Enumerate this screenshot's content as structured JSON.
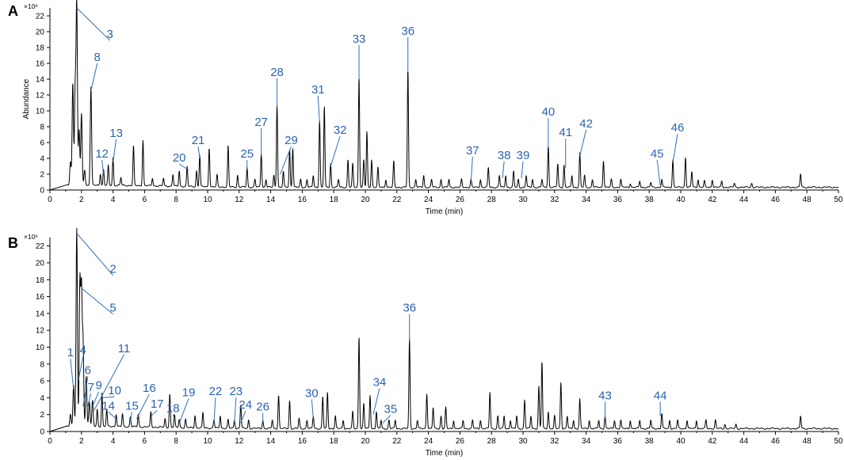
{
  "colors": {
    "trace": "#000000",
    "annotation": "#2a64b0",
    "background": "#ffffff"
  },
  "chart_data": [
    {
      "type": "line",
      "panel": "A",
      "multiplier": "×10⁶",
      "xlabel": "Time (min)",
      "ylabel": "Abundance",
      "xlim": [
        0,
        50
      ],
      "ylim": [
        0,
        23
      ],
      "xticks": [
        0,
        2,
        4,
        6,
        8,
        10,
        12,
        14,
        16,
        18,
        20,
        22,
        24,
        26,
        28,
        30,
        32,
        34,
        36,
        38,
        40,
        42,
        44,
        46,
        48,
        50
      ],
      "yticks": [
        0,
        2,
        4,
        6,
        8,
        10,
        12,
        14,
        16,
        18,
        20,
        22
      ],
      "peaks": [
        [
          1.3,
          3
        ],
        [
          1.45,
          13
        ],
        [
          1.6,
          12
        ],
        [
          1.7,
          23
        ],
        [
          1.85,
          7
        ],
        [
          2.0,
          9
        ],
        [
          2.2,
          2
        ],
        [
          2.6,
          12.5
        ],
        [
          3.2,
          1.5
        ],
        [
          3.4,
          2
        ],
        [
          3.7,
          2.5
        ],
        [
          4.0,
          3.5
        ],
        [
          4.5,
          1
        ],
        [
          5.3,
          5
        ],
        [
          5.9,
          5.8
        ],
        [
          6.5,
          1
        ],
        [
          7.2,
          1
        ],
        [
          7.8,
          1.5
        ],
        [
          8.2,
          2
        ],
        [
          8.7,
          2.5
        ],
        [
          9.3,
          2
        ],
        [
          9.5,
          4
        ],
        [
          10.1,
          5
        ],
        [
          10.6,
          1.5
        ],
        [
          11.3,
          5.2
        ],
        [
          11.9,
          1.5
        ],
        [
          12.5,
          2.5
        ],
        [
          13.0,
          1
        ],
        [
          13.4,
          4.3
        ],
        [
          13.7,
          1
        ],
        [
          14.2,
          1.5
        ],
        [
          14.4,
          10.5
        ],
        [
          14.8,
          2
        ],
        [
          15.2,
          4.8
        ],
        [
          15.4,
          5
        ],
        [
          15.9,
          1
        ],
        [
          16.3,
          1
        ],
        [
          16.7,
          1.5
        ],
        [
          17.1,
          8.5
        ],
        [
          17.4,
          10.3
        ],
        [
          17.8,
          3
        ],
        [
          18.3,
          1
        ],
        [
          18.9,
          3.5
        ],
        [
          19.2,
          3
        ],
        [
          19.6,
          14
        ],
        [
          19.9,
          3.5
        ],
        [
          20.1,
          7
        ],
        [
          20.4,
          3.5
        ],
        [
          20.8,
          2.5
        ],
        [
          21.3,
          1
        ],
        [
          21.8,
          3.3
        ],
        [
          22.7,
          15
        ],
        [
          23.2,
          1
        ],
        [
          23.7,
          1.5
        ],
        [
          24.2,
          1
        ],
        [
          24.8,
          1
        ],
        [
          25.3,
          1
        ],
        [
          26.1,
          1
        ],
        [
          26.7,
          1
        ],
        [
          27.3,
          1
        ],
        [
          27.8,
          2.5
        ],
        [
          28.5,
          1.5
        ],
        [
          28.9,
          1.5
        ],
        [
          29.4,
          2
        ],
        [
          29.7,
          1
        ],
        [
          30.2,
          1.5
        ],
        [
          30.6,
          1
        ],
        [
          31.2,
          1
        ],
        [
          31.6,
          5.3
        ],
        [
          32.2,
          3
        ],
        [
          32.6,
          2.8
        ],
        [
          33.1,
          1.5
        ],
        [
          33.6,
          4.3
        ],
        [
          33.9,
          1.5
        ],
        [
          34.4,
          1
        ],
        [
          35.1,
          3.4
        ],
        [
          35.6,
          1
        ],
        [
          36.2,
          1
        ],
        [
          36.8,
          0.5
        ],
        [
          37.4,
          0.8
        ],
        [
          38.1,
          0.6
        ],
        [
          38.8,
          1
        ],
        [
          39.5,
          3.5
        ],
        [
          40.3,
          3.8
        ],
        [
          40.7,
          2
        ],
        [
          41.1,
          1
        ],
        [
          41.5,
          0.8
        ],
        [
          42.0,
          1
        ],
        [
          42.6,
          0.8
        ],
        [
          43.4,
          0.5
        ],
        [
          44.5,
          0.5
        ],
        [
          47.6,
          1.7
        ]
      ],
      "annotations": [
        {
          "label": "3",
          "x": 1.7,
          "y": 23,
          "lx": 3.8,
          "ly": 19.2
        },
        {
          "label": "8",
          "x": 2.6,
          "y": 12.5,
          "lx": 3.0,
          "ly": 16.3
        },
        {
          "label": "12",
          "x": 3.4,
          "y": 2,
          "lx": 3.3,
          "ly": 4.1
        },
        {
          "label": "13",
          "x": 4.0,
          "y": 3.5,
          "lx": 4.2,
          "ly": 6.7
        },
        {
          "label": "20",
          "x": 8.8,
          "y": 2.5,
          "lx": 8.2,
          "ly": 3.6
        },
        {
          "label": "21",
          "x": 9.5,
          "y": 4,
          "lx": 9.4,
          "ly": 5.8
        },
        {
          "label": "25",
          "x": 12.5,
          "y": 2.5,
          "lx": 12.5,
          "ly": 4.1
        },
        {
          "label": "27",
          "x": 13.4,
          "y": 4.3,
          "lx": 13.4,
          "ly": 8.1
        },
        {
          "label": "28",
          "x": 14.4,
          "y": 10.5,
          "lx": 14.4,
          "ly": 14.4
        },
        {
          "label": "29",
          "x": 14.6,
          "y": 2,
          "lx": 15.3,
          "ly": 5.8
        },
        {
          "label": "31",
          "x": 17.1,
          "y": 8.5,
          "lx": 17.0,
          "ly": 12.2
        },
        {
          "label": "32",
          "x": 17.8,
          "y": 3,
          "lx": 18.4,
          "ly": 7.1
        },
        {
          "label": "33",
          "x": 19.6,
          "y": 14,
          "lx": 19.6,
          "ly": 18.6
        },
        {
          "label": "36",
          "x": 22.7,
          "y": 15,
          "lx": 22.7,
          "ly": 19.6
        },
        {
          "label": "37",
          "x": 26.7,
          "y": 1,
          "lx": 26.8,
          "ly": 4.5
        },
        {
          "label": "38",
          "x": 28.7,
          "y": 1.5,
          "lx": 28.8,
          "ly": 3.9
        },
        {
          "label": "39",
          "x": 29.9,
          "y": 1.5,
          "lx": 30.0,
          "ly": 3.9
        },
        {
          "label": "40",
          "x": 31.6,
          "y": 5.3,
          "lx": 31.6,
          "ly": 9.4
        },
        {
          "label": "41",
          "x": 32.7,
          "y": 2.8,
          "lx": 32.7,
          "ly": 6.8
        },
        {
          "label": "42",
          "x": 33.6,
          "y": 4.3,
          "lx": 34.0,
          "ly": 7.9
        },
        {
          "label": "45",
          "x": 38.7,
          "y": 0.6,
          "lx": 38.5,
          "ly": 4.1
        },
        {
          "label": "46",
          "x": 39.5,
          "y": 3.5,
          "lx": 39.8,
          "ly": 7.4
        }
      ]
    },
    {
      "type": "line",
      "panel": "B",
      "multiplier": "×10⁶",
      "xlabel": "Time (min)",
      "ylabel": "",
      "xlim": [
        0,
        50
      ],
      "ylim": [
        0,
        23
      ],
      "xticks": [
        0,
        2,
        4,
        6,
        8,
        10,
        12,
        14,
        16,
        18,
        20,
        22,
        24,
        26,
        28,
        30,
        32,
        34,
        36,
        38,
        40,
        42,
        44,
        46,
        48,
        50
      ],
      "yticks": [
        0,
        2,
        4,
        6,
        8,
        10,
        12,
        14,
        16,
        18,
        20,
        22
      ],
      "peaks": [
        [
          1.3,
          1.5
        ],
        [
          1.5,
          5
        ],
        [
          1.7,
          23.5
        ],
        [
          1.9,
          17
        ],
        [
          2.0,
          16
        ],
        [
          2.1,
          10
        ],
        [
          2.3,
          6
        ],
        [
          2.5,
          3
        ],
        [
          2.7,
          3
        ],
        [
          3.0,
          2
        ],
        [
          3.3,
          4
        ],
        [
          3.6,
          2
        ],
        [
          4.2,
          1.5
        ],
        [
          4.6,
          1.5
        ],
        [
          5.1,
          1.2
        ],
        [
          5.6,
          1.5
        ],
        [
          6.4,
          1.8
        ],
        [
          7.3,
          1
        ],
        [
          7.6,
          4
        ],
        [
          7.9,
          1.5
        ],
        [
          8.2,
          1
        ],
        [
          8.6,
          1
        ],
        [
          9.2,
          1.5
        ],
        [
          9.7,
          1.8
        ],
        [
          10.4,
          1
        ],
        [
          10.8,
          1.5
        ],
        [
          11.3,
          1
        ],
        [
          11.7,
          1
        ],
        [
          12.1,
          2.8
        ],
        [
          12.6,
          1
        ],
        [
          13.5,
          1
        ],
        [
          14.1,
          1
        ],
        [
          14.5,
          4
        ],
        [
          15.2,
          3.3
        ],
        [
          15.8,
          1.2
        ],
        [
          16.3,
          1
        ],
        [
          16.7,
          1.5
        ],
        [
          17.3,
          3.8
        ],
        [
          17.6,
          4.3
        ],
        [
          18.1,
          1.5
        ],
        [
          18.6,
          1
        ],
        [
          19.2,
          2
        ],
        [
          19.6,
          11
        ],
        [
          19.9,
          3
        ],
        [
          20.3,
          4
        ],
        [
          20.7,
          2
        ],
        [
          21.0,
          1
        ],
        [
          21.5,
          1
        ],
        [
          21.9,
          1
        ],
        [
          22.8,
          10.7
        ],
        [
          23.3,
          1
        ],
        [
          23.9,
          4.2
        ],
        [
          24.3,
          2.5
        ],
        [
          24.8,
          1.5
        ],
        [
          25.1,
          2.5
        ],
        [
          25.6,
          1
        ],
        [
          26.2,
          1
        ],
        [
          26.8,
          1
        ],
        [
          27.3,
          1
        ],
        [
          27.9,
          4.3
        ],
        [
          28.4,
          1.5
        ],
        [
          28.8,
          1.5
        ],
        [
          29.2,
          1
        ],
        [
          29.6,
          1.5
        ],
        [
          30.1,
          3.4
        ],
        [
          30.5,
          1.5
        ],
        [
          31.0,
          5
        ],
        [
          31.2,
          8
        ],
        [
          31.6,
          2
        ],
        [
          32.0,
          1.5
        ],
        [
          32.4,
          5.5
        ],
        [
          32.8,
          1.5
        ],
        [
          33.2,
          1
        ],
        [
          33.6,
          3.5
        ],
        [
          34.2,
          1
        ],
        [
          34.8,
          1
        ],
        [
          35.2,
          1.5
        ],
        [
          35.8,
          1
        ],
        [
          36.2,
          1
        ],
        [
          36.8,
          1
        ],
        [
          37.4,
          1
        ],
        [
          38.1,
          1
        ],
        [
          38.8,
          1.8
        ],
        [
          39.3,
          1
        ],
        [
          39.8,
          1
        ],
        [
          40.4,
          1
        ],
        [
          41.0,
          1
        ],
        [
          41.6,
          1
        ],
        [
          42.2,
          1
        ],
        [
          42.8,
          0.5
        ],
        [
          43.5,
          0.5
        ],
        [
          47.6,
          1.5
        ]
      ],
      "annotations": [
        {
          "label": "2",
          "x": 1.7,
          "y": 23.5,
          "lx": 4.0,
          "ly": 18.8
        },
        {
          "label": "5",
          "x": 2.0,
          "y": 17,
          "lx": 4.0,
          "ly": 14.2
        },
        {
          "label": "1",
          "x": 1.5,
          "y": 5,
          "lx": 1.3,
          "ly": 8.9
        },
        {
          "label": "4",
          "x": 1.8,
          "y": 6,
          "lx": 2.1,
          "ly": 9.2
        },
        {
          "label": "6",
          "x": 2.1,
          "y": 3,
          "lx": 2.4,
          "ly": 6.8
        },
        {
          "label": "7",
          "x": 2.4,
          "y": 3,
          "lx": 2.6,
          "ly": 4.8
        },
        {
          "label": "9",
          "x": 2.7,
          "y": 3,
          "lx": 3.1,
          "ly": 5.0
        },
        {
          "label": "11",
          "x": 2.8,
          "y": 2.5,
          "lx": 4.7,
          "ly": 9.4
        },
        {
          "label": "10",
          "x": 3.3,
          "y": 4,
          "lx": 4.1,
          "ly": 4.4
        },
        {
          "label": "14",
          "x": 4.2,
          "y": 1.5,
          "lx": 3.7,
          "ly": 2.6
        },
        {
          "label": "15",
          "x": 5.1,
          "y": 1.2,
          "lx": 5.2,
          "ly": 2.6
        },
        {
          "label": "16",
          "x": 5.5,
          "y": 1.5,
          "lx": 6.3,
          "ly": 4.7
        },
        {
          "label": "17",
          "x": 6.4,
          "y": 1.8,
          "lx": 6.8,
          "ly": 2.8
        },
        {
          "label": "18",
          "x": 7.9,
          "y": 1.5,
          "lx": 7.8,
          "ly": 2.3
        },
        {
          "label": "19",
          "x": 8.2,
          "y": 1,
          "lx": 8.8,
          "ly": 4.2
        },
        {
          "label": "22",
          "x": 10.4,
          "y": 1,
          "lx": 10.5,
          "ly": 4.3
        },
        {
          "label": "23",
          "x": 11.7,
          "y": 1,
          "lx": 11.8,
          "ly": 4.3
        },
        {
          "label": "24",
          "x": 12.1,
          "y": 1,
          "lx": 12.4,
          "ly": 2.7
        },
        {
          "label": "26",
          "x": 13.5,
          "y": 1,
          "lx": 13.5,
          "ly": 2.5
        },
        {
          "label": "30",
          "x": 16.7,
          "y": 1.5,
          "lx": 16.6,
          "ly": 4.1
        },
        {
          "label": "34",
          "x": 20.5,
          "y": 2,
          "lx": 20.9,
          "ly": 5.4
        },
        {
          "label": "35",
          "x": 21.1,
          "y": 1,
          "lx": 21.6,
          "ly": 2.2
        },
        {
          "label": "36",
          "x": 22.8,
          "y": 10.7,
          "lx": 22.8,
          "ly": 14.2
        },
        {
          "label": "43",
          "x": 35.2,
          "y": 1.5,
          "lx": 35.2,
          "ly": 3.8
        },
        {
          "label": "44",
          "x": 38.7,
          "y": 1.8,
          "lx": 38.7,
          "ly": 3.8
        }
      ]
    }
  ]
}
